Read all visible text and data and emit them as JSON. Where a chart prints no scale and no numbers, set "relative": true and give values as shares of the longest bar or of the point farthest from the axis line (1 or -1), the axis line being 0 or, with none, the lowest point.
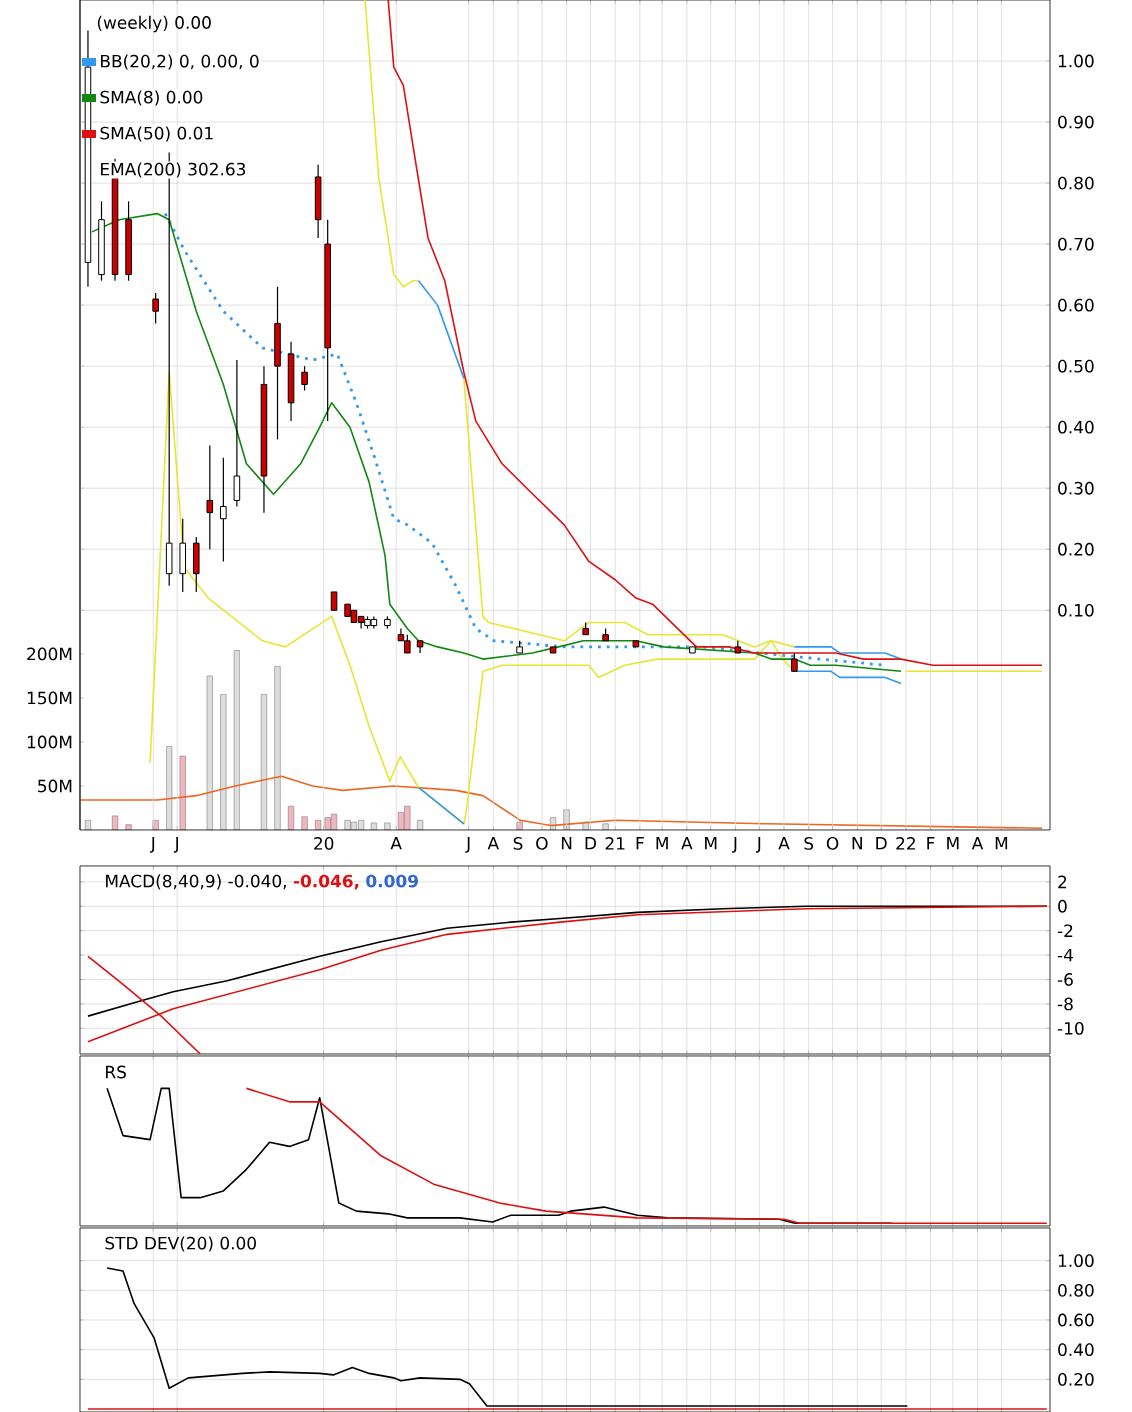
{
  "chart_data": [
    {
      "type": "candlestick",
      "title": "(weekly) 0.00",
      "legend": "top left",
      "grid": true,
      "annotations": [
        "EMA(200) 302.63"
      ],
      "x": [
        "2019-03-11",
        "2019-03-28",
        "2019-04-14",
        "2019-05-01",
        "2019-06-04",
        "2019-06-21",
        "2019-07-08",
        "2019-07-25",
        "2019-08-11",
        "2019-08-28",
        "2019-09-14",
        "2019-10-18",
        "2019-11-04",
        "2019-11-21",
        "2019-12-08",
        "2019-12-25",
        "2020-01-06",
        "2020-01-14",
        "2020-01-31",
        "2020-02-08",
        "2020-02-17",
        "2020-02-25",
        "2020-03-04",
        "2020-03-21",
        "2020-04-07",
        "2020-04-15",
        "2020-05-01",
        "2020-09-03",
        "2020-10-15",
        "2020-11-25",
        "2020-12-20",
        "2021-01-27",
        "2021-04-08",
        "2021-06-04",
        "2021-08-14"
      ],
      "ohlc": [
        [
          0.67,
          1.05,
          0.63,
          0.99
        ],
        [
          0.65,
          0.77,
          0.64,
          0.74
        ],
        [
          0.81,
          0.84,
          0.64,
          0.65
        ],
        [
          0.74,
          0.77,
          0.64,
          0.65
        ],
        [
          0.61,
          0.62,
          0.57,
          0.59
        ],
        [
          0.16,
          0.85,
          0.14,
          0.21
        ],
        [
          0.16,
          0.25,
          0.13,
          0.21
        ],
        [
          0.21,
          0.22,
          0.13,
          0.16
        ],
        [
          0.28,
          0.37,
          0.2,
          0.26
        ],
        [
          0.25,
          0.35,
          0.18,
          0.27
        ],
        [
          0.28,
          0.51,
          0.27,
          0.32
        ],
        [
          0.47,
          0.5,
          0.26,
          0.32
        ],
        [
          0.57,
          0.63,
          0.38,
          0.5
        ],
        [
          0.52,
          0.54,
          0.41,
          0.44
        ],
        [
          0.49,
          0.5,
          0.46,
          0.47
        ],
        [
          0.81,
          0.83,
          0.71,
          0.74
        ],
        [
          0.7,
          0.74,
          0.41,
          0.53
        ],
        [
          0.13,
          0.13,
          0.1,
          0.1
        ],
        [
          0.11,
          0.11,
          0.09,
          0.09
        ],
        [
          0.1,
          0.1,
          0.08,
          0.08
        ],
        [
          0.09,
          0.09,
          0.07,
          0.08
        ],
        [
          0.075,
          0.09,
          0.07,
          0.085
        ],
        [
          0.075,
          0.09,
          0.07,
          0.085
        ],
        [
          0.075,
          0.09,
          0.07,
          0.085
        ],
        [
          0.06,
          0.07,
          0.05,
          0.05
        ],
        [
          0.05,
          0.06,
          0.03,
          0.03
        ],
        [
          0.05,
          0.05,
          0.03,
          0.04
        ],
        [
          0.03,
          0.05,
          0.03,
          0.04
        ],
        [
          0.04,
          0.04,
          0.03,
          0.03
        ],
        [
          0.07,
          0.08,
          0.06,
          0.06
        ],
        [
          0.06,
          0.07,
          0.05,
          0.05
        ],
        [
          0.05,
          0.05,
          0.04,
          0.04
        ],
        [
          0.03,
          0.04,
          0.03,
          0.04
        ],
        [
          0.04,
          0.05,
          0.03,
          0.03
        ],
        [
          0.02,
          0.03,
          0.0,
          0.0
        ]
      ],
      "colors": [
        "#ffffff",
        "#ffffff",
        "#cc0000",
        "#cc0000",
        "#cc0000",
        "#ffffff",
        "#ffffff",
        "#cc0000",
        "#cc0000",
        "#ffffff",
        "#ffffff",
        "#cc0000",
        "#cc0000",
        "#cc0000",
        "#cc0000",
        "#cc0000",
        "#cc0000",
        "#cc0000",
        "#cc0000",
        "#cc0000",
        "#cc0000",
        "#ffffff",
        "#ffffff",
        "#ffffff",
        "#cc0000",
        "#cc0000",
        "#cc0000",
        "#ffffff",
        "#cc0000",
        "#cc0000",
        "#cc0000",
        "#cc0000",
        "#ffffff",
        "#cc0000",
        "#cc0000"
      ],
      "series": [
        {
          "type": "bar",
          "axis": "y2",
          "x": [
            "2019-03-11",
            "2019-04-14",
            "2019-05-01",
            "2019-06-04",
            "2019-06-21",
            "2019-07-08",
            "2019-08-11",
            "2019-08-28",
            "2019-09-14",
            "2019-10-18",
            "2019-11-04",
            "2019-11-21",
            "2019-12-08",
            "2019-12-25",
            "2020-01-06",
            "2020-01-14",
            "2020-01-31",
            "2020-02-08",
            "2020-02-17",
            "2020-03-04",
            "2020-03-21",
            "2020-04-07",
            "2020-04-15",
            "2020-05-01",
            "2020-09-03",
            "2020-10-15",
            "2020-11-01",
            "2020-11-25",
            "2020-12-20"
          ],
          "values": [
            11,
            16,
            6,
            11,
            95,
            84,
            175,
            154,
            204,
            154,
            186,
            27,
            15,
            11,
            14,
            18,
            11,
            9,
            11,
            8,
            8,
            20,
            27,
            11,
            9,
            14,
            23,
            9,
            7
          ],
          "colors": [
            "#dddddd",
            "#f2b5bf",
            "#f2b5bf",
            "#f2b5bf",
            "#dddddd",
            "#f2b5bf",
            "#dddddd",
            "#dddddd",
            "#dddddd",
            "#dddddd",
            "#dddddd",
            "#f2b5bf",
            "#f2b5bf",
            "#f2b5bf",
            "#f2b5bf",
            "#f2b5bf",
            "#dddddd",
            "#dddddd",
            "#dddddd",
            "#dddddd",
            "#dddddd",
            "#f2b5bf",
            "#f2b5bf",
            "#dddddd",
            "#f2b5bf",
            "#dddddd",
            "#dddddd",
            "#dddddd",
            "#dddddd"
          ]
        },
        {
          "type": "line",
          "axis": "y2",
          "color": "#ee6622",
          "x": [
            "2019-03-01",
            "2019-06-06",
            "2019-07-25",
            "2019-09-12",
            "2019-11-09",
            "2019-12-18",
            "2020-01-25",
            "2020-03-29",
            "2020-06-15",
            "2020-07-19",
            "2020-09-04",
            "2020-10-12",
            "2021-01-01",
            "2021-07-10",
            "2022-06-21"
          ],
          "values": [
            34,
            34,
            39,
            50,
            61,
            50,
            45,
            50,
            45,
            39,
            11,
            5,
            11,
            7,
            2
          ]
        },
        {
          "type": "line",
          "color": "#e6e633",
          "x": [
            "2020-02-22",
            "2020-03-10",
            "2020-03-29",
            "2020-04-10",
            "2020-04-22",
            "2020-04-29",
            "2020-05-23",
            "2020-06-25",
            "2020-07-19",
            "2020-07-26",
            "2020-10-29",
            "2020-11-29",
            "2020-12-23",
            "2021-01-13",
            "2021-02-11",
            "2021-05-16",
            "2021-06-25",
            "2021-07-16",
            "2021-08-14"
          ],
          "values": [
            1.1,
            0.81,
            0.65,
            0.63,
            0.64,
            0.64,
            null,
            0.48,
            0.09,
            0.08,
            0.05,
            0.08,
            0.08,
            0.08,
            0.06,
            0.06,
            0.04,
            0.05,
            0.04
          ]
        },
        {
          "type": "line",
          "color": "#e6e633",
          "x": [
            "2019-05-28",
            "2019-06-21",
            "2019-07-10",
            "2019-08-09",
            "2019-10-16",
            "2019-11-14",
            "2020-01-11",
            "2020-02-03",
            "2020-02-27",
            "2020-03-24",
            "2020-04-06",
            "2020-04-29",
            "2020-06-25",
            "2020-06-28",
            "2020-07-19",
            "2020-08-12",
            "2020-10-29",
            "2020-11-29",
            "2020-12-11",
            "2021-01-13",
            "2021-02-23",
            "2021-06-25",
            "2021-07-16",
            "2021-07-30",
            "2021-08-14",
            "2021-09-29",
            "2021-10-10",
            "2021-12-06",
            "2021-12-26",
            "2022-01-01",
            "2022-06-21"
          ],
          "values": [
            -0.15,
            0.49,
            0.17,
            0.12,
            0.05,
            0.04,
            0.09,
            0.01,
            -0.09,
            -0.18,
            -0.14,
            -0.19,
            -0.25,
            -0.23,
            0,
            0.01,
            0.01,
            0.01,
            -0.01,
            0.01,
            0.02,
            0.02,
            0.05,
            0.02,
            0,
            null,
            null,
            null,
            null,
            0,
            0
          ]
        },
        {
          "type": "line",
          "name": "BB(20,2) 0, 0.00, 0",
          "color": "#3399ee",
          "x": [
            "2020-04-29",
            "2020-05-23",
            "2020-06-25",
            null,
            "2020-04-29",
            "2020-06-25",
            null,
            "2021-08-14",
            "2021-09-29",
            "2021-10-10",
            "2021-12-06",
            "2021-12-26",
            null,
            "2021-08-14",
            "2021-09-29",
            "2021-10-10",
            "2021-12-06",
            "2021-12-26"
          ],
          "values": [
            0.64,
            0.6,
            0.48,
            null,
            -0.19,
            -0.25,
            null,
            0.04,
            0.04,
            0.03,
            0.03,
            0.02,
            null,
            0,
            0,
            -0.01,
            -0.01,
            -0.02
          ]
        },
        {
          "type": "line",
          "color": "#3399ee",
          "line_style": "dotted",
          "x": [
            "2019-06-16",
            "2019-07-10",
            "2019-08-28",
            "2019-10-16",
            "2019-12-18",
            "2020-01-18",
            "2020-02-11",
            "2020-03-05",
            "2020-03-29",
            "2020-04-15",
            "2020-05-16",
            "2020-06-15",
            "2020-07-10",
            "2020-08-02",
            "2020-10-29",
            "2021-04-19",
            "2021-09-15",
            "2021-12-06"
          ],
          "values": [
            0.75,
            0.69,
            0.59,
            0.53,
            0.51,
            0.52,
            0.44,
            0.35,
            0.25,
            0.24,
            0.21,
            0.14,
            0.07,
            0.05,
            0.04,
            0.04,
            0.02,
            0.01
          ]
        },
        {
          "type": "line",
          "name": "SMA(8) 0.00",
          "color": "#118811",
          "x": [
            "2019-03-16",
            "2019-04-19",
            "2019-06-06",
            "2019-06-21",
            "2019-07-25",
            "2019-08-28",
            "2019-09-26",
            "2019-10-30",
            "2019-12-03",
            "2019-12-27",
            "2020-01-11",
            "2020-02-03",
            "2020-02-27",
            "2020-03-18",
            "2020-03-24",
            "2020-04-15",
            "2020-04-29",
            "2020-05-23",
            "2020-06-25",
            "2020-07-19",
            "2020-09-19",
            "2020-10-22",
            "2020-11-22",
            "2020-12-15",
            "2021-01-27",
            "2021-03-03",
            "2021-06-25",
            "2021-07-16",
            "2021-08-14",
            "2021-09-03",
            "2021-10-05",
            "2021-12-26"
          ],
          "values": [
            0.72,
            0.74,
            0.75,
            0.74,
            0.59,
            0.47,
            0.34,
            0.29,
            0.34,
            0.4,
            0.44,
            0.4,
            0.31,
            0.19,
            0.11,
            0.07,
            0.05,
            0.04,
            0.03,
            0.02,
            0.03,
            0.04,
            0.05,
            0.05,
            0.05,
            0.04,
            0.03,
            0.02,
            0.02,
            0.01,
            0.01,
            0
          ]
        },
        {
          "type": "line",
          "name": "SMA(50) 0.01",
          "color": "#dd1111",
          "x": [
            "2020-03-22",
            "2020-03-29",
            "2020-04-10",
            "2020-04-26",
            "2020-05-11",
            "2020-06-01",
            "2020-06-25",
            "2020-07-10",
            "2020-08-12",
            "2020-09-12",
            "2020-10-29",
            "2020-11-29",
            "2021-01-01",
            "2021-01-27",
            "2021-02-17",
            "2021-04-13",
            "2021-05-24",
            "2021-06-25",
            "2021-10-05",
            "2021-11-09",
            "2021-12-26",
            "2022-02-04",
            "2022-06-21"
          ],
          "values": [
            1.1,
            0.99,
            0.96,
            0.83,
            0.71,
            0.64,
            0.49,
            0.41,
            0.34,
            0.3,
            0.24,
            0.18,
            0.15,
            0.12,
            0.11,
            0.04,
            0.04,
            0.03,
            0.03,
            0.02,
            0.02,
            0.01,
            0.01
          ]
        }
      ],
      "xlim": [
        "2019-03-01",
        "2022-07-01"
      ],
      "xticks": [
        {
          "value": "2019-06-01",
          "label": "J"
        },
        {
          "value": "2019-07-01",
          "label": "J"
        },
        {
          "value": "2020-01-01",
          "label": "20"
        },
        {
          "value": "2020-04-01",
          "label": "A"
        },
        {
          "value": "2020-07-01",
          "label": "J"
        },
        {
          "value": "2020-08-01",
          "label": "A"
        },
        {
          "value": "2020-09-01",
          "label": "S"
        },
        {
          "value": "2020-10-01",
          "label": "O"
        },
        {
          "value": "2020-11-01",
          "label": "N"
        },
        {
          "value": "2020-12-01",
          "label": "D"
        },
        {
          "value": "2021-01-01",
          "label": "21"
        },
        {
          "value": "2021-02-01",
          "label": "F"
        },
        {
          "value": "2021-03-01",
          "label": "M"
        },
        {
          "value": "2021-04-01",
          "label": "A"
        },
        {
          "value": "2021-05-01",
          "label": "M"
        },
        {
          "value": "2021-06-01",
          "label": "J"
        },
        {
          "value": "2021-07-01",
          "label": "J"
        },
        {
          "value": "2021-08-01",
          "label": "A"
        },
        {
          "value": "2021-09-01",
          "label": "S"
        },
        {
          "value": "2021-10-01",
          "label": "O"
        },
        {
          "value": "2021-11-01",
          "label": "N"
        },
        {
          "value": "2021-12-01",
          "label": "D"
        },
        {
          "value": "2022-01-01",
          "label": "22"
        },
        {
          "value": "2022-02-01",
          "label": "F"
        },
        {
          "value": "2022-03-01",
          "label": "M"
        },
        {
          "value": "2022-04-01",
          "label": "A"
        },
        {
          "value": "2022-05-01",
          "label": "M"
        }
      ],
      "ylim": [
        -0.26,
        1.1
      ],
      "yticks": [
        {
          "value": 0.1,
          "label": "0.10"
        },
        {
          "value": 0.2,
          "label": "0.20"
        },
        {
          "value": 0.3,
          "label": "0.30"
        },
        {
          "value": 0.4,
          "label": "0.40"
        },
        {
          "value": 0.5,
          "label": "0.50"
        },
        {
          "value": 0.6,
          "label": "0.60"
        },
        {
          "value": 0.7,
          "label": "0.70"
        },
        {
          "value": 0.8,
          "label": "0.80"
        },
        {
          "value": 0.9,
          "label": "0.90"
        },
        {
          "value": 1.0,
          "label": "1.00"
        }
      ],
      "y2lim": [
        0,
        943
      ],
      "y2ticks": [
        {
          "value": 50,
          "label": "50M"
        },
        {
          "value": 100,
          "label": "100M"
        },
        {
          "value": 150,
          "label": "150M"
        },
        {
          "value": 200,
          "label": "200M"
        }
      ]
    },
    {
      "type": "line",
      "title": "MACD(8,40,9) -0.040,",
      "legend": "top left",
      "grid": true,
      "tick_labels": "y",
      "annotations": [
        "0.009"
      ],
      "series": [
        {
          "color": "#000000",
          "x": [
            "2019-03-11",
            "2019-05-08",
            "2019-06-26",
            "2019-09-02",
            "2019-12-27",
            "2020-03-13",
            "2020-06-04",
            "2020-08-23",
            "2020-10-24",
            "2021-01-29",
            "2021-05-16",
            "2021-08-29",
            "2022-06-27"
          ],
          "values": [
            -9.0,
            -7.9,
            -7.0,
            -6.1,
            -4.1,
            -2.9,
            -1.8,
            -1.3,
            -1.0,
            -0.5,
            -0.2,
            0,
            0
          ]
        },
        {
          "name": "-0.046,",
          "color": "#dd1111",
          "x": [
            "2019-03-11",
            "2019-06-26",
            "2019-12-27",
            "2020-03-13",
            "2020-06-04",
            "2020-10-24",
            "2021-01-29",
            "2021-08-29",
            "2022-06-27"
          ],
          "values": [
            -11.1,
            -8.4,
            -5.2,
            -3.6,
            -2.3,
            -1.3,
            -0.7,
            -0.2,
            0
          ]
        },
        {
          "color": "#dd1111",
          "x": [
            "2019-03-11",
            "2019-04-24",
            "2019-06-11",
            "2019-07-30"
          ],
          "values": [
            -4.1,
            -6.4,
            -9.0,
            -12.1
          ]
        }
      ],
      "xlim": [
        "2019-03-01",
        "2022-07-01"
      ],
      "xticks": [
        {
          "value": "2019-06-01",
          "label": null
        },
        {
          "value": "2019-07-01",
          "label": null
        },
        {
          "value": "2020-01-01",
          "label": null
        },
        {
          "value": "2020-04-01",
          "label": null
        },
        {
          "value": "2020-07-01",
          "label": null
        },
        {
          "value": "2020-08-01",
          "label": null
        },
        {
          "value": "2020-09-01",
          "label": null
        },
        {
          "value": "2020-10-01",
          "label": null
        },
        {
          "value": "2020-11-01",
          "label": null
        },
        {
          "value": "2020-12-01",
          "label": null
        },
        {
          "value": "2021-01-01",
          "label": null
        },
        {
          "value": "2021-02-01",
          "label": null
        },
        {
          "value": "2021-03-01",
          "label": null
        },
        {
          "value": "2021-04-01",
          "label": null
        },
        {
          "value": "2021-05-01",
          "label": null
        },
        {
          "value": "2021-06-01",
          "label": null
        },
        {
          "value": "2021-07-01",
          "label": null
        },
        {
          "value": "2021-08-01",
          "label": null
        },
        {
          "value": "2021-09-01",
          "label": null
        },
        {
          "value": "2021-10-01",
          "label": null
        },
        {
          "value": "2021-11-01",
          "label": null
        },
        {
          "value": "2021-12-01",
          "label": null
        },
        {
          "value": "2022-01-01",
          "label": null
        },
        {
          "value": "2022-02-01",
          "label": null
        },
        {
          "value": "2022-03-01",
          "label": null
        },
        {
          "value": "2022-04-01",
          "label": null
        },
        {
          "value": "2022-05-01",
          "label": null
        }
      ],
      "ylim": [
        -12.1,
        3.3
      ],
      "yticks": [
        -10,
        -8,
        -6,
        -4,
        -2,
        0,
        2
      ]
    },
    {
      "type": "line",
      "title": "RS",
      "grid": "x",
      "relative": true,
      "tick_labels": false,
      "series": [
        {
          "color": "#000000",
          "x": [
            "2019-04-04",
            "2019-04-24",
            "2019-05-28",
            "2019-06-11",
            "2019-06-21",
            "2019-07-06",
            "2019-07-30",
            "2019-08-28",
            "2019-09-26",
            "2019-10-25",
            "2019-11-19",
            "2019-12-13",
            "2019-12-27",
            "2020-01-20",
            "2020-02-11",
            "2020-03-22",
            "2020-04-15",
            "2020-06-20",
            "2020-07-31",
            "2020-08-23",
            "2020-10-22",
            "2020-11-06",
            "2020-12-18",
            "2021-01-29",
            "2021-03-08",
            "2021-07-26",
            "2021-08-15",
            "2021-12-14"
          ],
          "values": [
            1,
            0.65,
            0.62,
            1,
            1,
            0.19,
            0.19,
            0.24,
            0.4,
            0.6,
            0.57,
            0.62,
            0.93,
            0.15,
            0.09,
            0.07,
            0.04,
            0.04,
            0.01,
            0.06,
            0.06,
            0.09,
            0.12,
            0.06,
            0.04,
            0.03,
            0,
            0
          ]
        },
        {
          "color": "#dd1111",
          "x": [
            "2019-09-26",
            "2019-11-19",
            "2019-12-27",
            "2020-01-25",
            "2020-03-13",
            "2020-05-18",
            "2020-08-09",
            "2020-10-06",
            "2021-01-29",
            "2021-08-01",
            "2021-08-21",
            "2022-06-27"
          ],
          "values": [
            1,
            0.9,
            0.9,
            0.75,
            0.5,
            0.29,
            0.15,
            0.09,
            0.04,
            0.03,
            0,
            0
          ]
        }
      ],
      "xlim": [
        "2019-03-01",
        "2022-07-01"
      ],
      "xticks": [
        {
          "value": "2019-06-01",
          "label": null
        },
        {
          "value": "2019-07-01",
          "label": null
        },
        {
          "value": "2020-01-01",
          "label": null
        },
        {
          "value": "2020-04-01",
          "label": null
        },
        {
          "value": "2020-07-01",
          "label": null
        },
        {
          "value": "2020-08-01",
          "label": null
        },
        {
          "value": "2020-09-01",
          "label": null
        },
        {
          "value": "2020-10-01",
          "label": null
        },
        {
          "value": "2020-11-01",
          "label": null
        },
        {
          "value": "2020-12-01",
          "label": null
        },
        {
          "value": "2021-01-01",
          "label": null
        },
        {
          "value": "2021-02-01",
          "label": null
        },
        {
          "value": "2021-03-01",
          "label": null
        },
        {
          "value": "2021-04-01",
          "label": null
        },
        {
          "value": "2021-05-01",
          "label": null
        },
        {
          "value": "2021-06-01",
          "label": null
        },
        {
          "value": "2021-07-01",
          "label": null
        },
        {
          "value": "2021-08-01",
          "label": null
        },
        {
          "value": "2021-09-01",
          "label": null
        },
        {
          "value": "2021-10-01",
          "label": null
        },
        {
          "value": "2021-11-01",
          "label": null
        },
        {
          "value": "2021-12-01",
          "label": null
        },
        {
          "value": "2022-01-01",
          "label": null
        },
        {
          "value": "2022-02-01",
          "label": null
        },
        {
          "value": "2022-03-01",
          "label": null
        },
        {
          "value": "2022-04-01",
          "label": null
        },
        {
          "value": "2022-05-01",
          "label": null
        }
      ]
    },
    {
      "type": "line",
      "title": "STD DEV(20) 0.00",
      "grid": true,
      "tick_labels": "y",
      "series": [
        {
          "color": "#000000",
          "x": [
            "2019-04-04",
            "2019-04-24",
            "2019-05-08",
            "2019-06-02",
            "2019-06-21",
            "2019-07-15",
            "2019-09-21",
            "2019-10-25",
            "2019-12-27",
            "2020-01-13",
            "2020-02-06",
            "2020-02-27",
            "2020-03-29",
            "2020-04-07",
            "2020-05-01",
            "2020-06-20",
            "2020-07-02",
            "2020-07-24",
            "2020-09-09",
            "2022-01-03"
          ],
          "values": [
            0.95,
            0.93,
            0.71,
            0.48,
            0.14,
            0.21,
            0.24,
            0.25,
            0.24,
            0.23,
            0.28,
            0.24,
            0.21,
            0.19,
            0.21,
            0.2,
            0.17,
            0.02,
            0.02,
            0.02
          ]
        },
        {
          "color": "#dd1111",
          "x": [
            "2019-03-11",
            "2022-06-27"
          ],
          "values": [
            0,
            0
          ]
        }
      ],
      "xlim": [
        "2019-03-01",
        "2022-07-01"
      ],
      "xticks": [
        {
          "value": "2019-06-01",
          "label": null
        },
        {
          "value": "2019-07-01",
          "label": null
        },
        {
          "value": "2020-01-01",
          "label": null
        },
        {
          "value": "2020-04-01",
          "label": null
        },
        {
          "value": "2020-07-01",
          "label": null
        },
        {
          "value": "2020-08-01",
          "label": null
        },
        {
          "value": "2020-09-01",
          "label": null
        },
        {
          "value": "2020-10-01",
          "label": null
        },
        {
          "value": "2020-11-01",
          "label": null
        },
        {
          "value": "2020-12-01",
          "label": null
        },
        {
          "value": "2021-01-01",
          "label": null
        },
        {
          "value": "2021-02-01",
          "label": null
        },
        {
          "value": "2021-03-01",
          "label": null
        },
        {
          "value": "2021-04-01",
          "label": null
        },
        {
          "value": "2021-05-01",
          "label": null
        },
        {
          "value": "2021-06-01",
          "label": null
        },
        {
          "value": "2021-07-01",
          "label": null
        },
        {
          "value": "2021-08-01",
          "label": null
        },
        {
          "value": "2021-09-01",
          "label": null
        },
        {
          "value": "2021-10-01",
          "label": null
        },
        {
          "value": "2021-11-01",
          "label": null
        },
        {
          "value": "2021-12-01",
          "label": null
        },
        {
          "value": "2022-01-01",
          "label": null
        },
        {
          "value": "2022-02-01",
          "label": null
        },
        {
          "value": "2022-03-01",
          "label": null
        },
        {
          "value": "2022-04-01",
          "label": null
        },
        {
          "value": "2022-05-01",
          "label": null
        }
      ],
      "ylim": [
        -0.02,
        1.22
      ],
      "yticks": [
        {
          "value": 0.2,
          "label": "0.20"
        },
        {
          "value": 0.4,
          "label": "0.40"
        },
        {
          "value": 0.6,
          "label": "0.60"
        },
        {
          "value": 0.8,
          "label": "0.80"
        },
        {
          "value": 1.0,
          "label": "1.00"
        }
      ]
    }
  ]
}
